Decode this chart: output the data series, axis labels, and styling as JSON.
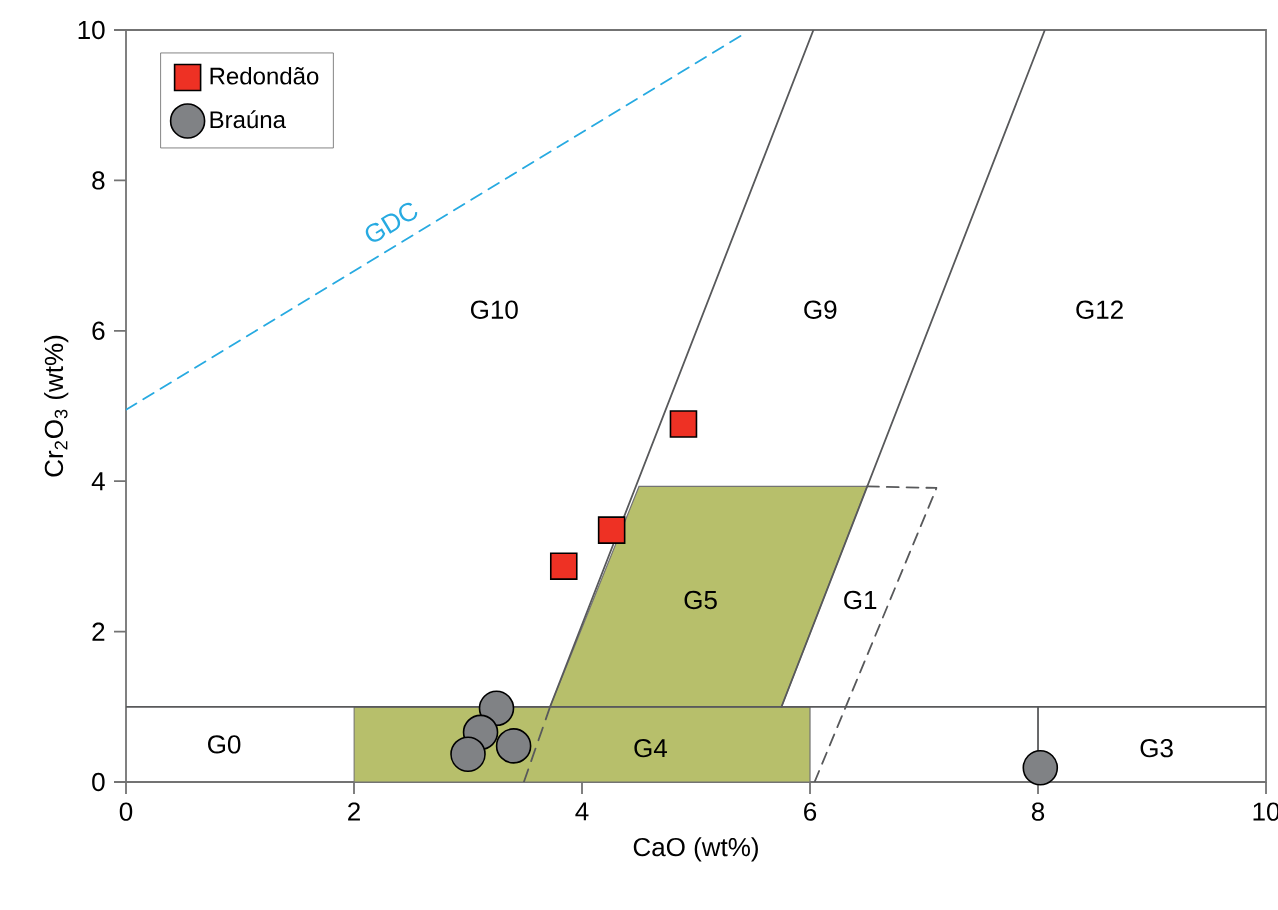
{
  "chart_data": {
    "type": "scatter",
    "xlabel": "CaO (wt%)",
    "ylabel": "Cr$_{2}$O$_{3}$ (wt%)",
    "xlim": [
      0,
      10
    ],
    "ylim": [
      0,
      10
    ],
    "xticks": [
      0,
      2,
      4,
      6,
      8,
      10
    ],
    "yticks": [
      0,
      2,
      4,
      6,
      8,
      10
    ],
    "legend": "top left",
    "grid": false,
    "series": [
      {
        "type": "area",
        "color": "#b7bf6b",
        "x": [
          3.72,
          4.5,
          6.5,
          5.75
        ],
        "values": [
          1,
          3.93,
          3.93,
          1
        ]
      },
      {
        "type": "area",
        "color": "#b7bf6b",
        "x": [
          2,
          2,
          6,
          6
        ],
        "values": [
          0,
          1,
          1,
          0
        ]
      },
      {
        "type": "line",
        "color": "#27aae1",
        "line_style": "dashed",
        "name": "GDC",
        "x": [
          0,
          5.39
        ],
        "values": [
          4.95,
          9.92
        ]
      },
      {
        "type": "line",
        "color": "#58595b",
        "line_style": "solid",
        "x": [
          0,
          8
        ],
        "values": [
          1,
          1
        ]
      },
      {
        "type": "line",
        "color": "#58595b",
        "line_style": "solid",
        "x": [
          3.72,
          6.03
        ],
        "values": [
          1,
          10
        ]
      },
      {
        "type": "line",
        "color": "#58595b",
        "line_style": "dashed",
        "x": [
          3.49,
          3.72
        ],
        "values": [
          0,
          1
        ]
      },
      {
        "type": "line",
        "color": "#58595b",
        "line_style": "solid",
        "x": [
          5.75,
          8.06
        ],
        "values": [
          1,
          10
        ]
      },
      {
        "type": "line",
        "color": "#58595b",
        "line_style": "dashed",
        "x": [
          6.5,
          7.11,
          6.04
        ],
        "values": [
          3.93,
          3.91,
          0
        ]
      },
      {
        "type": "line",
        "color": "#58595b",
        "line_style": "solid",
        "x": [
          8,
          8,
          10
        ],
        "values": [
          0,
          1,
          1
        ]
      },
      {
        "name": "Redondão",
        "color": "#ee3124",
        "marker": "square",
        "x": [
          4.89,
          4.26,
          3.84
        ],
        "values": [
          4.76,
          3.35,
          2.87
        ]
      },
      {
        "name": "Braúna",
        "color": "#808285",
        "marker": "circle",
        "x": [
          3.25,
          3.11,
          3.4,
          3.0,
          8.02
        ],
        "values": [
          0.98,
          0.66,
          0.48,
          0.37,
          0.19
        ]
      }
    ],
    "annotations": [
      "G10",
      "G9",
      "G12",
      "G5",
      "G1",
      "G0",
      "G4",
      "G3"
    ]
  }
}
